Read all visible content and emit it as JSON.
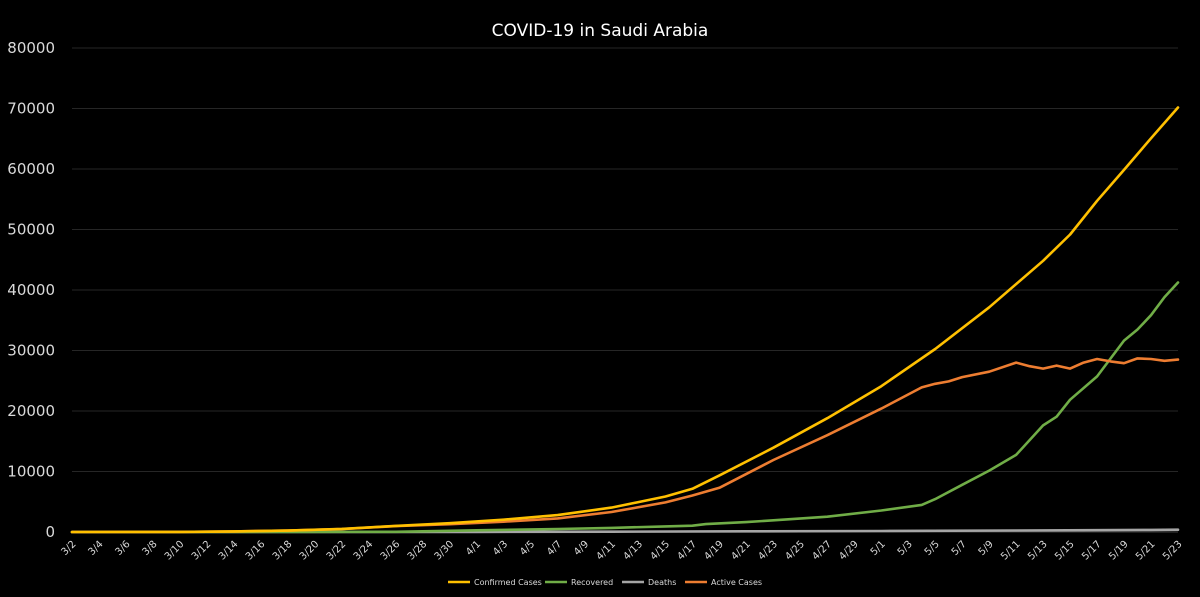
{
  "chart_data": {
    "type": "line",
    "title": "COVID-19 in Saudi Arabia",
    "xlabel": "",
    "ylabel": "",
    "ylim": [
      0,
      80000
    ],
    "yticks": [
      0,
      10000,
      20000,
      30000,
      40000,
      50000,
      60000,
      70000,
      80000
    ],
    "grid": true,
    "legend_position": "bottom",
    "x_tick_labels": [
      "3/2",
      "3/4",
      "3/6",
      "3/8",
      "3/10",
      "3/12",
      "3/14",
      "3/16",
      "3/18",
      "3/20",
      "3/22",
      "3/24",
      "3/26",
      "3/28",
      "3/30",
      "4/1",
      "4/3",
      "4/5",
      "4/7",
      "4/9",
      "4/11",
      "4/13",
      "4/15",
      "4/17",
      "4/19",
      "4/21",
      "4/23",
      "4/25",
      "4/27",
      "4/29",
      "5/1",
      "5/3",
      "5/5",
      "5/7",
      "5/9",
      "5/11",
      "5/13",
      "5/15",
      "5/17",
      "5/19",
      "5/21",
      "5/23"
    ],
    "series": [
      {
        "name": "Confirmed Cases",
        "color": "#ffc000",
        "points": [
          [
            "3/2",
            1
          ],
          [
            "3/10",
            20
          ],
          [
            "3/14",
            103
          ],
          [
            "3/18",
            238
          ],
          [
            "3/22",
            511
          ],
          [
            "3/26",
            1012
          ],
          [
            "3/30",
            1453
          ],
          [
            "4/3",
            2039
          ],
          [
            "4/7",
            2795
          ],
          [
            "4/11",
            4033
          ],
          [
            "4/15",
            5862
          ],
          [
            "4/17",
            7142
          ],
          [
            "4/19",
            9362
          ],
          [
            "4/23",
            13930
          ],
          [
            "4/27",
            18811
          ],
          [
            "5/1",
            24097
          ],
          [
            "5/5",
            30251
          ],
          [
            "5/9",
            37136
          ],
          [
            "5/13",
            44830
          ],
          [
            "5/15",
            49176
          ],
          [
            "5/17",
            54752
          ],
          [
            "5/19",
            59854
          ],
          [
            "5/21",
            65077
          ],
          [
            "5/23",
            70161
          ]
        ]
      },
      {
        "name": "Recovered",
        "color": "#70ad47",
        "points": [
          [
            "3/2",
            0
          ],
          [
            "3/18",
            6
          ],
          [
            "3/26",
            35
          ],
          [
            "4/1",
            287
          ],
          [
            "4/7",
            488
          ],
          [
            "4/11",
            685
          ],
          [
            "4/15",
            931
          ],
          [
            "4/17",
            1049
          ],
          [
            "4/18",
            1304
          ],
          [
            "4/21",
            1640
          ],
          [
            "4/23",
            1929
          ],
          [
            "4/27",
            2531
          ],
          [
            "5/1",
            3555
          ],
          [
            "5/4",
            4476
          ],
          [
            "5/5",
            5431
          ],
          [
            "5/7",
            7798
          ],
          [
            "5/9",
            10144
          ],
          [
            "5/11",
            12737
          ],
          [
            "5/13",
            17622
          ],
          [
            "5/14",
            19051
          ],
          [
            "5/15",
            21869
          ],
          [
            "5/17",
            25722
          ],
          [
            "5/19",
            31634
          ],
          [
            "5/20",
            33478
          ],
          [
            "5/21",
            35836
          ],
          [
            "5/22",
            38827
          ],
          [
            "5/23",
            41236
          ]
        ]
      },
      {
        "name": "Deaths",
        "color": "#a5a5a5",
        "points": [
          [
            "3/2",
            0
          ],
          [
            "3/24",
            1
          ],
          [
            "4/1",
            21
          ],
          [
            "4/11",
            52
          ],
          [
            "4/21",
            114
          ],
          [
            "5/1",
            162
          ],
          [
            "5/11",
            255
          ],
          [
            "5/21",
            339
          ],
          [
            "5/23",
            379
          ]
        ]
      },
      {
        "name": "Active Cases",
        "color": "#ed7d31",
        "points": [
          [
            "3/2",
            1
          ],
          [
            "3/10",
            20
          ],
          [
            "3/14",
            102
          ],
          [
            "3/18",
            232
          ],
          [
            "3/22",
            480
          ],
          [
            "3/26",
            970
          ],
          [
            "3/30",
            1290
          ],
          [
            "4/3",
            1700
          ],
          [
            "4/7",
            2250
          ],
          [
            "4/11",
            3300
          ],
          [
            "4/15",
            4900
          ],
          [
            "4/17",
            6040
          ],
          [
            "4/19",
            7300
          ],
          [
            "4/23",
            11900
          ],
          [
            "4/27",
            16000
          ],
          [
            "5/1",
            20400
          ],
          [
            "5/4",
            23900
          ],
          [
            "5/5",
            24500
          ],
          [
            "5/6",
            24900
          ],
          [
            "5/7",
            25600
          ],
          [
            "5/9",
            26500
          ],
          [
            "5/11",
            28000
          ],
          [
            "5/12",
            27400
          ],
          [
            "5/13",
            27000
          ],
          [
            "5/14",
            27500
          ],
          [
            "5/15",
            27000
          ],
          [
            "5/16",
            28000
          ],
          [
            "5/17",
            28600
          ],
          [
            "5/18",
            28200
          ],
          [
            "5/19",
            27900
          ],
          [
            "5/20",
            28700
          ],
          [
            "5/21",
            28600
          ],
          [
            "5/22",
            28300
          ],
          [
            "5/23",
            28500
          ]
        ]
      }
    ]
  }
}
